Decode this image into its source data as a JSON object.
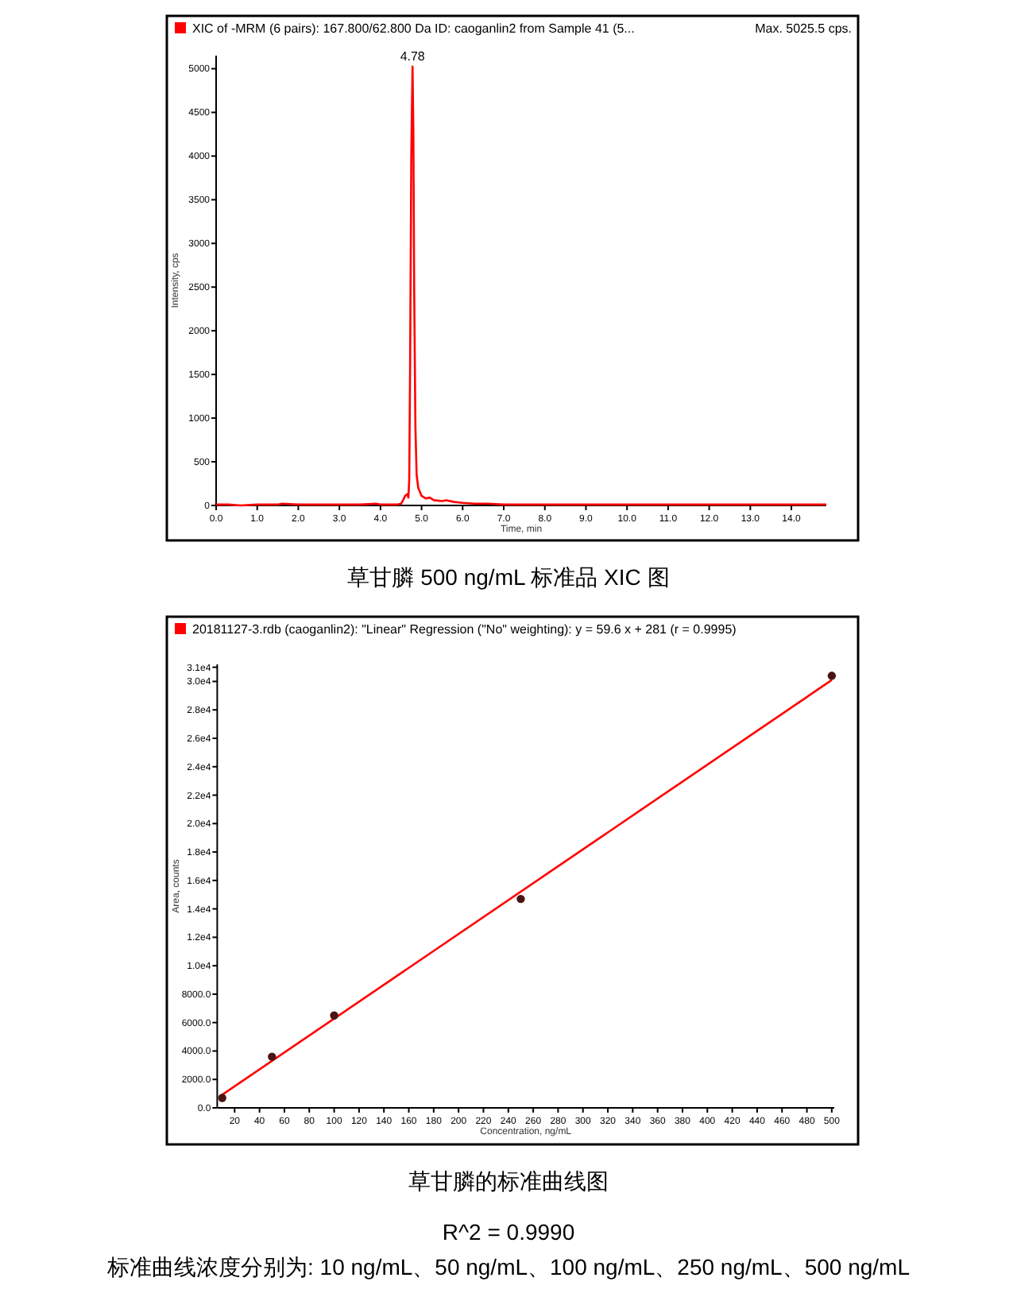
{
  "chart_data": [
    {
      "type": "line",
      "title": "XIC of -MRM (6 pairs): 167.800/62.800 Da ID: caoganlin2 from Sample 41 (5...",
      "xlabel": "Time, min",
      "ylabel": "Intensity, cps",
      "xlim": [
        0,
        14.85
      ],
      "ylim": [
        0,
        5150
      ],
      "xticks": [
        {
          "value": 0,
          "label": "0.0"
        },
        {
          "value": 1,
          "label": "1.0"
        },
        {
          "value": 2,
          "label": "2.0"
        },
        {
          "value": 3,
          "label": "3.0"
        },
        {
          "value": 4,
          "label": "4.0"
        },
        {
          "value": 5,
          "label": "5.0"
        },
        {
          "value": 6,
          "label": "6.0"
        },
        {
          "value": 7,
          "label": "7.0"
        },
        {
          "value": 8,
          "label": "8.0"
        },
        {
          "value": 9,
          "label": "9.0"
        },
        {
          "value": 10,
          "label": "10.0"
        },
        {
          "value": 11,
          "label": "11.0"
        },
        {
          "value": 12,
          "label": "12.0"
        },
        {
          "value": 13,
          "label": "13.0"
        },
        {
          "value": 14,
          "label": "14.0"
        }
      ],
      "yticks": [
        0,
        500,
        1000,
        1500,
        2000,
        2500,
        3000,
        3500,
        4000,
        4500,
        5000
      ],
      "series": [
        {
          "color": "#ff0000",
          "x": [
            0,
            0.3,
            0.6,
            1.0,
            1.5,
            1.6,
            2.0,
            2.5,
            3.0,
            3.5,
            3.9,
            4.0,
            4.2,
            4.4,
            4.5,
            4.55,
            4.6,
            4.65,
            4.68,
            4.7,
            4.72,
            4.75,
            4.78,
            4.8,
            4.82,
            4.85,
            4.88,
            4.92,
            5.0,
            5.1,
            5.2,
            5.3,
            5.5,
            5.6,
            5.8,
            6.0,
            6.3,
            6.6,
            7.0,
            7.5,
            8.0,
            8.5,
            9.0,
            9.5,
            10.0,
            10.5,
            11.0,
            11.5,
            12.0,
            12.5,
            13.0,
            13.5,
            14.0,
            14.5,
            14.85
          ],
          "values": [
            10,
            10,
            0,
            10,
            10,
            20,
            10,
            10,
            10,
            10,
            20,
            10,
            10,
            10,
            20,
            60,
            110,
            130,
            90,
            300,
            1500,
            4000,
            5025.5,
            4300,
            2500,
            900,
            350,
            200,
            110,
            80,
            90,
            60,
            50,
            60,
            40,
            30,
            20,
            20,
            10,
            10,
            10,
            10,
            10,
            10,
            10,
            10,
            10,
            10,
            10,
            10,
            10,
            10,
            10,
            10,
            10
          ]
        }
      ],
      "annotations": [
        {
          "text": "4.78",
          "x": 4.78,
          "y": 5025.5
        },
        "Max. 5025.5 cps.",
        "草甘膦 500 ng/mL 标准品 XIC 图"
      ]
    },
    {
      "type": "scatter",
      "title": "20181127-3.rdb (caoganlin2): \"Linear\" Regression (\"No\" weighting): y = 59.6 x + 281 (r = 0.9995)",
      "xlabel": "Concentration, ng/mL",
      "ylabel": "Area, counts",
      "xlim": [
        6,
        502
      ],
      "ylim": [
        0,
        31200
      ],
      "xticks": [
        20,
        40,
        60,
        80,
        100,
        120,
        140,
        160,
        180,
        200,
        220,
        240,
        260,
        280,
        300,
        320,
        340,
        360,
        380,
        400,
        420,
        440,
        460,
        480,
        500
      ],
      "yticks": [
        {
          "value": 0,
          "label": "0.0"
        },
        {
          "value": 2000,
          "label": "2000.0"
        },
        {
          "value": 4000,
          "label": "4000.0"
        },
        {
          "value": 6000,
          "label": "6000.0"
        },
        {
          "value": 8000,
          "label": "8000.0"
        },
        {
          "value": 10000,
          "label": "1.0e4"
        },
        {
          "value": 12000,
          "label": "1.2e4"
        },
        {
          "value": 14000,
          "label": "1.4e4"
        },
        {
          "value": 16000,
          "label": "1.6e4"
        },
        {
          "value": 18000,
          "label": "1.8e4"
        },
        {
          "value": 20000,
          "label": "2.0e4"
        },
        {
          "value": 22000,
          "label": "2.2e4"
        },
        {
          "value": 24000,
          "label": "2.4e4"
        },
        {
          "value": 26000,
          "label": "2.6e4"
        },
        {
          "value": 28000,
          "label": "2.8e4"
        },
        {
          "value": 30000,
          "label": "3.0e4"
        },
        {
          "value": 31000,
          "label": "3.1e4"
        }
      ],
      "series": [
        {
          "type": "line",
          "color": "#ff0000",
          "x": [
            8,
            500
          ],
          "values": [
            800,
            30100
          ]
        },
        {
          "color": "#4a1414",
          "marker": "circle",
          "x": [
            10,
            50,
            100,
            250,
            500
          ],
          "values": [
            700,
            3600,
            6500,
            14700,
            30400
          ]
        }
      ],
      "annotations": [
        "草甘膦的标准曲线图",
        "R^2 = 0.9990",
        "标准曲线浓度分别为: 10 ng/mL、50 ng/mL、100 ng/mL、250 ng/mL、500 ng/mL"
      ]
    }
  ]
}
